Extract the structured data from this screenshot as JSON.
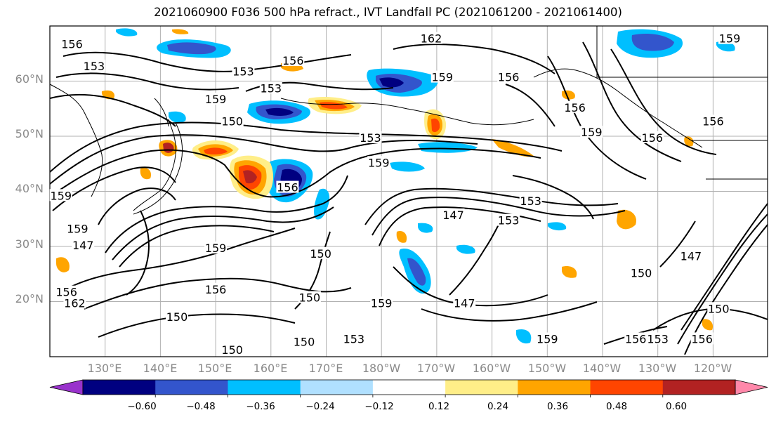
{
  "title": "2021060900 F036 500 hPa refract., IVT Landfall PC (2021061200 - 2021061400)",
  "lat_labels": [
    "60°N",
    "50°N",
    "40°N",
    "30°N",
    "20°N"
  ],
  "lon_labels": [
    "130°E",
    "140°E",
    "150°E",
    "160°E",
    "170°E",
    "180°W",
    "170°W",
    "160°W",
    "150°W",
    "140°W",
    "130°W",
    "120°W"
  ],
  "colorbar": {
    "colors": [
      "#9932cc",
      "#000080",
      "#3355cc",
      "#00bfff",
      "#b0e0ff",
      "#ffffff",
      "#ffee88",
      "#ffa500",
      "#ff4500",
      "#b22222",
      "#ff88aa"
    ],
    "tick_labels": [
      "−0.60",
      "−0.48",
      "−0.36",
      "−0.24",
      "−0.12",
      "0.12",
      "0.24",
      "0.36",
      "0.48",
      "0.60"
    ]
  },
  "contour_labels": [
    {
      "text": "156",
      "lon": 124,
      "lat": 66.5
    },
    {
      "text": "153",
      "lon": 128,
      "lat": 62.5
    },
    {
      "text": "153",
      "lon": 155,
      "lat": 61.5
    },
    {
      "text": "153",
      "lon": 160,
      "lat": 58.5
    },
    {
      "text": "159",
      "lon": 150,
      "lat": 56.5
    },
    {
      "text": "150",
      "lon": 153,
      "lat": 52.5
    },
    {
      "text": "156",
      "lon": 164,
      "lat": 63.5
    },
    {
      "text": "162",
      "lon": 189,
      "lat": 67.5
    },
    {
      "text": "159",
      "lon": 191,
      "lat": 60.5
    },
    {
      "text": "153",
      "lon": 178,
      "lat": 49.5
    },
    {
      "text": "159",
      "lon": 179.5,
      "lat": 45.0
    },
    {
      "text": "156",
      "lon": 163,
      "lat": 40.5
    },
    {
      "text": "147",
      "lon": 193,
      "lat": 35.5
    },
    {
      "text": "153",
      "lon": 203,
      "lat": 34.5
    },
    {
      "text": "153",
      "lon": 207,
      "lat": 38.0
    },
    {
      "text": "159",
      "lon": 150,
      "lat": 29.5
    },
    {
      "text": "150",
      "lon": 169,
      "lat": 28.5
    },
    {
      "text": "156",
      "lon": 150,
      "lat": 22.0
    },
    {
      "text": "150",
      "lon": 167,
      "lat": 20.5
    },
    {
      "text": "150",
      "lon": 143,
      "lat": 17.0
    },
    {
      "text": "159",
      "lon": 180,
      "lat": 19.5
    },
    {
      "text": "147",
      "lon": 195,
      "lat": 19.5
    },
    {
      "text": "153",
      "lon": 175,
      "lat": 13.0
    },
    {
      "text": "150",
      "lon": 166,
      "lat": 12.5
    },
    {
      "text": "150",
      "lon": 153,
      "lat": 11.0
    },
    {
      "text": "156",
      "lon": 203,
      "lat": 60.5
    },
    {
      "text": "156",
      "lon": 215,
      "lat": 55.0
    },
    {
      "text": "159",
      "lon": 218,
      "lat": 50.5
    },
    {
      "text": "156",
      "lon": 229,
      "lat": 49.5
    },
    {
      "text": "159",
      "lon": 243,
      "lat": 67.5
    },
    {
      "text": "156",
      "lon": 240,
      "lat": 52.5
    },
    {
      "text": "150",
      "lon": 227,
      "lat": 25.0
    },
    {
      "text": "147",
      "lon": 236,
      "lat": 28.0
    },
    {
      "text": "150",
      "lon": 241,
      "lat": 18.5
    },
    {
      "text": "156",
      "lon": 238,
      "lat": 13.0
    },
    {
      "text": "153",
      "lon": 230,
      "lat": 13.0
    },
    {
      "text": "156",
      "lon": 226,
      "lat": 13.0
    },
    {
      "text": "159",
      "lon": 210,
      "lat": 13.0
    },
    {
      "text": "156",
      "lon": 123,
      "lat": 21.5
    },
    {
      "text": "162",
      "lon": 124.5,
      "lat": 19.5
    },
    {
      "text": "159",
      "lon": 125,
      "lat": 33.0
    },
    {
      "text": "147",
      "lon": 126,
      "lat": 30.0
    },
    {
      "text": "159",
      "lon": 122,
      "lat": 39.0
    }
  ]
}
